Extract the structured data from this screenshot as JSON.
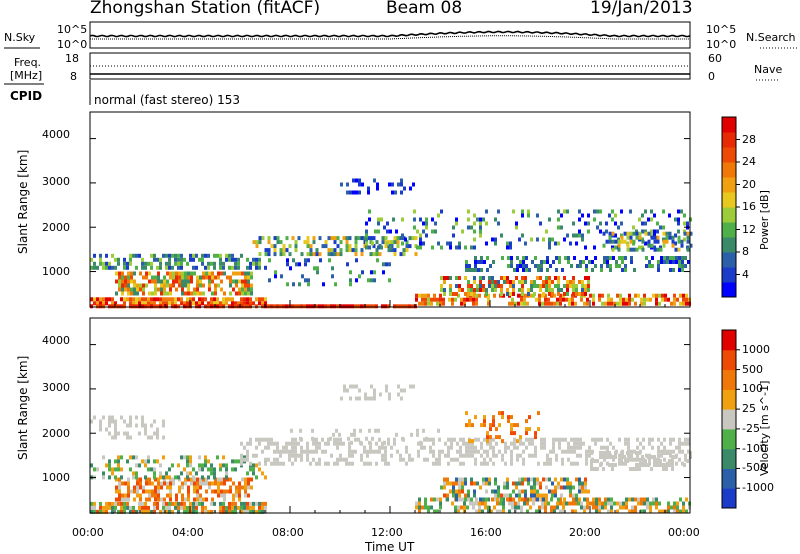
{
  "header": {
    "station": "Zhongshan Station (fitACF)",
    "beam": "Beam 08",
    "date": "19/Jan/2013",
    "mode": "normal (fast stereo) 153"
  },
  "top_panels": {
    "nsky_label": "N.Sky",
    "nsky_ticks": [
      "10^5",
      "10^0"
    ],
    "nsearch_label": "N.Search",
    "nsearch_ticks": [
      "10^5",
      "10^0"
    ],
    "freq_label_1": "Freq.",
    "freq_label_2": "[MHz]",
    "freq_ticks": [
      "18",
      "8"
    ],
    "nave_label": "Nave",
    "nave_ticks": [
      "60",
      "0"
    ],
    "cpid_label": "CPID"
  },
  "chart_data": [
    {
      "type": "heatmap",
      "title": "",
      "xlabel": "Time UT",
      "ylabel": "Slant Range [km]",
      "x_ticks": [
        "00:00",
        "04:00",
        "08:00",
        "12:00",
        "16:00",
        "20:00",
        "00:00"
      ],
      "y_ticks": [
        "1000",
        "2000",
        "3000",
        "4000"
      ],
      "ylim": [
        200,
        4600
      ],
      "xlim_hours": [
        0,
        24
      ],
      "colorbar": {
        "label": "Power [dB]",
        "ticks": [
          "4",
          "8",
          "12",
          "16",
          "20",
          "24",
          "28"
        ],
        "colors": [
          "#0000ff",
          "#1a3cc8",
          "#2b5fa8",
          "#3a8a6a",
          "#4fb04a",
          "#9ccc3a",
          "#e8c81e",
          "#f0a010",
          "#f07808",
          "#ee4a06",
          "#e82a04",
          "#e00000"
        ]
      }
    },
    {
      "type": "heatmap",
      "title": "",
      "xlabel": "Time UT",
      "ylabel": "Slant Range [km]",
      "x_ticks": [
        "00:00",
        "04:00",
        "08:00",
        "12:00",
        "16:00",
        "20:00",
        "00:00"
      ],
      "y_ticks": [
        "1000",
        "2000",
        "3000",
        "4000"
      ],
      "ylim": [
        200,
        4600
      ],
      "xlim_hours": [
        0,
        24
      ],
      "colorbar": {
        "label": "Velocity [m s^-1]",
        "ticks": [
          "1000",
          "500",
          "100",
          "25",
          "-25",
          "-100",
          "-500",
          "-1000"
        ],
        "colors": [
          "#1a3cc8",
          "#2b5fa8",
          "#3a8a6a",
          "#4fb04a",
          "#c8c8c0",
          "#f0a010",
          "#f07808",
          "#ee4a06",
          "#e00000"
        ]
      }
    }
  ]
}
